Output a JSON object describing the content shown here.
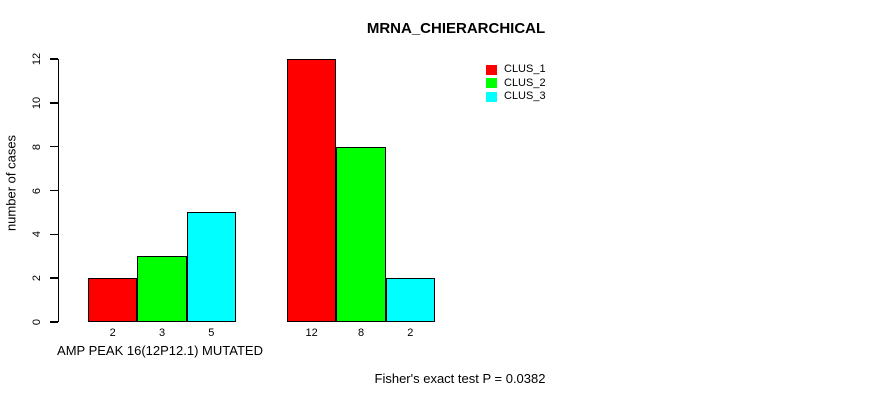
{
  "title": "MRNA_CHIERARCHICAL",
  "y_axis": {
    "label": "number of cases",
    "tick_labels": [
      "0",
      "2",
      "4",
      "6",
      "8",
      "10",
      "12"
    ]
  },
  "x_axis": {
    "group_labels": [
      "AMP PEAK 16(12P12.1) MUTATED",
      ""
    ]
  },
  "legend": {
    "items": [
      {
        "label": "CLUS_1",
        "color": "#ff0000"
      },
      {
        "label": "CLUS_2",
        "color": "#00ff00"
      },
      {
        "label": "CLUS_3",
        "color": "#00ffff"
      }
    ]
  },
  "footer": "Fisher's exact test P = 0.0382",
  "chart_data": {
    "type": "bar",
    "title": "MRNA_CHIERARCHICAL",
    "xlabel": "AMP PEAK 16(12P12.1) MUTATED",
    "ylabel": "number of cases",
    "ylim": [
      0,
      12
    ],
    "yticks": [
      0,
      2,
      4,
      6,
      8,
      10,
      12
    ],
    "grid": false,
    "legend_position": "top-right",
    "categories": [
      "AMP PEAK 16(12P12.1) MUTATED",
      ""
    ],
    "series": [
      {
        "name": "CLUS_1",
        "color": "#ff0000",
        "values": [
          2,
          12
        ]
      },
      {
        "name": "CLUS_2",
        "color": "#00ff00",
        "values": [
          3,
          8
        ]
      },
      {
        "name": "CLUS_3",
        "color": "#00ffff",
        "values": [
          5,
          2
        ]
      }
    ],
    "bar_value_labels": [
      [
        2,
        3,
        5
      ],
      [
        12,
        8,
        2
      ]
    ],
    "annotation": "Fisher's exact test P = 0.0382"
  }
}
